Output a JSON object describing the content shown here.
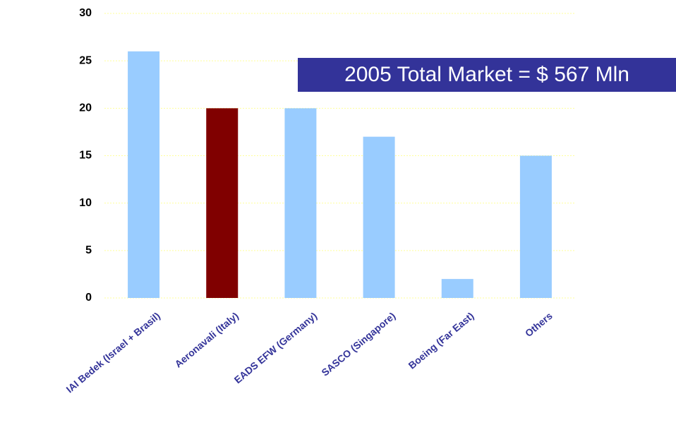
{
  "chart_data": {
    "type": "bar",
    "categories": [
      "IAI Bedek (Israel + Brasil)",
      "Aeronavali (Italy)",
      "EADS EFW (Germany)",
      "SASCO (Singapore)",
      "Boeing (Far East)",
      "Others"
    ],
    "values": [
      26,
      20,
      20,
      17,
      2,
      15
    ],
    "colors": [
      "#99ccff",
      "#800000",
      "#99ccff",
      "#99ccff",
      "#99ccff",
      "#99ccff"
    ],
    "ylim": [
      0,
      30
    ],
    "yticks": [
      0,
      5,
      10,
      15,
      20,
      25,
      30
    ],
    "grid": true,
    "annotation": "2005 Total Market = $ 567 Mln"
  }
}
